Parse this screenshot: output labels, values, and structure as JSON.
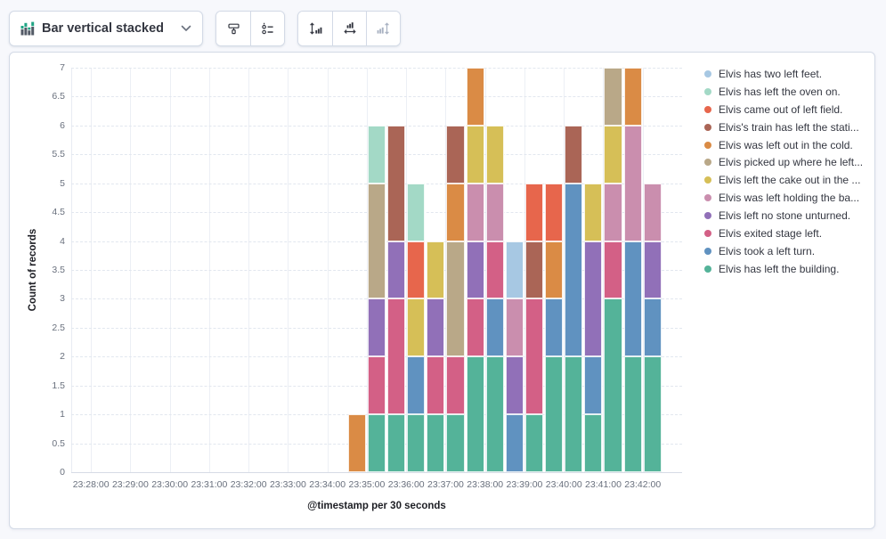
{
  "toolbar": {
    "chart_type_button": {
      "label": "Bar vertical stacked",
      "icon": "bar-vertical-stacked-icon"
    },
    "icon_buttons": [
      {
        "name": "visual-options",
        "icon": "paint-roller-icon",
        "disabled": false
      },
      {
        "name": "legend-settings",
        "icon": "legend-list-icon",
        "disabled": false
      },
      {
        "name": "left-axis",
        "icon": "left-axis-icon",
        "disabled": false
      },
      {
        "name": "bottom-axis",
        "icon": "bottom-axis-icon",
        "disabled": false
      },
      {
        "name": "right-axis",
        "icon": "right-axis-icon",
        "disabled": true
      }
    ],
    "icon_color": "#343741",
    "disabled_icon_color": "#A9B2C2"
  },
  "chart_data": {
    "type": "bar",
    "mode": "vertical-stacked",
    "title": "",
    "xlabel": "@timestamp per 30 seconds",
    "ylabel": "Count of records",
    "ylim": [
      0,
      7
    ],
    "y_tick_step": 0.5,
    "x_domain": [
      "23:27:30",
      "23:43:00"
    ],
    "bucket_seconds": 30,
    "x_tick_labels": [
      "23:28:00",
      "23:29:00",
      "23:30:00",
      "23:31:00",
      "23:32:00",
      "23:33:00",
      "23:34:00",
      "23:35:00",
      "23:36:00",
      "23:37:00",
      "23:38:00",
      "23:39:00",
      "23:40:00",
      "23:41:00",
      "23:42:00"
    ],
    "buckets": [
      "23:34:30",
      "23:35:00",
      "23:35:30",
      "23:36:00",
      "23:36:30",
      "23:37:00",
      "23:37:30",
      "23:38:00",
      "23:38:30",
      "23:39:00",
      "23:39:30",
      "23:40:00",
      "23:40:30",
      "23:41:00",
      "23:41:30",
      "23:42:00"
    ],
    "grid": {
      "horizontal": "dashed",
      "vertical": "solid"
    },
    "legend_position": "right",
    "legend_order": "reverse-of-series",
    "series": [
      {
        "name": "Elvis has left the building.",
        "color": "#54B399",
        "values": [
          0,
          1,
          1,
          1,
          1,
          1,
          2,
          2,
          0,
          1,
          2,
          2,
          1,
          3,
          2,
          2
        ]
      },
      {
        "name": "Elvis took a left turn.",
        "color": "#6092C0",
        "values": [
          0,
          0,
          0,
          1,
          0,
          0,
          0,
          1,
          1,
          0,
          1,
          3,
          1,
          0,
          2,
          1
        ]
      },
      {
        "name": "Elvis exited stage left.",
        "color": "#D36086",
        "values": [
          0,
          1,
          2,
          0,
          1,
          1,
          1,
          1,
          0,
          2,
          0,
          0,
          0,
          1,
          0,
          0
        ]
      },
      {
        "name": "Elvis left no stone unturned.",
        "color": "#9170B8",
        "values": [
          0,
          1,
          1,
          0,
          1,
          0,
          1,
          0,
          1,
          0,
          0,
          0,
          2,
          0,
          0,
          1
        ]
      },
      {
        "name": "Elvis was left holding the ba...",
        "color": "#CA8EAE",
        "values": [
          0,
          0,
          0,
          0,
          0,
          0,
          1,
          1,
          1,
          0,
          0,
          0,
          0,
          1,
          2,
          1
        ]
      },
      {
        "name": "Elvis left the cake out in the ...",
        "color": "#D6BF57",
        "values": [
          0,
          0,
          0,
          1,
          1,
          0,
          1,
          1,
          0,
          0,
          0,
          0,
          1,
          1,
          0,
          0
        ]
      },
      {
        "name": "Elvis picked up where he left...",
        "color": "#B9A888",
        "values": [
          0,
          2,
          0,
          0,
          0,
          2,
          0,
          0,
          0,
          0,
          0,
          0,
          0,
          1,
          0,
          0
        ]
      },
      {
        "name": "Elvis was left out in the cold.",
        "color": "#DA8B45",
        "values": [
          1,
          0,
          0,
          0,
          0,
          1,
          1,
          0,
          0,
          0,
          1,
          0,
          0,
          0,
          1,
          0
        ]
      },
      {
        "name": "Elvis's train has left the stati...",
        "color": "#AA6556",
        "values": [
          0,
          0,
          2,
          0,
          0,
          1,
          0,
          0,
          0,
          1,
          0,
          1,
          0,
          0,
          0,
          0
        ]
      },
      {
        "name": "Elvis came out of left field.",
        "color": "#E7664C",
        "values": [
          0,
          0,
          0,
          1,
          0,
          0,
          0,
          0,
          0,
          1,
          1,
          0,
          0,
          0,
          0,
          0
        ]
      },
      {
        "name": "Elvis has left the oven on.",
        "color": "#A3D9C6",
        "values": [
          0,
          1,
          0,
          1,
          0,
          0,
          0,
          0,
          0,
          0,
          0,
          0,
          0,
          0,
          0,
          0
        ]
      },
      {
        "name": "Elvis has two left feet.",
        "color": "#A7C8E3",
        "values": [
          0,
          0,
          0,
          0,
          0,
          0,
          0,
          0,
          1,
          0,
          0,
          0,
          0,
          0,
          0,
          0
        ]
      }
    ]
  }
}
